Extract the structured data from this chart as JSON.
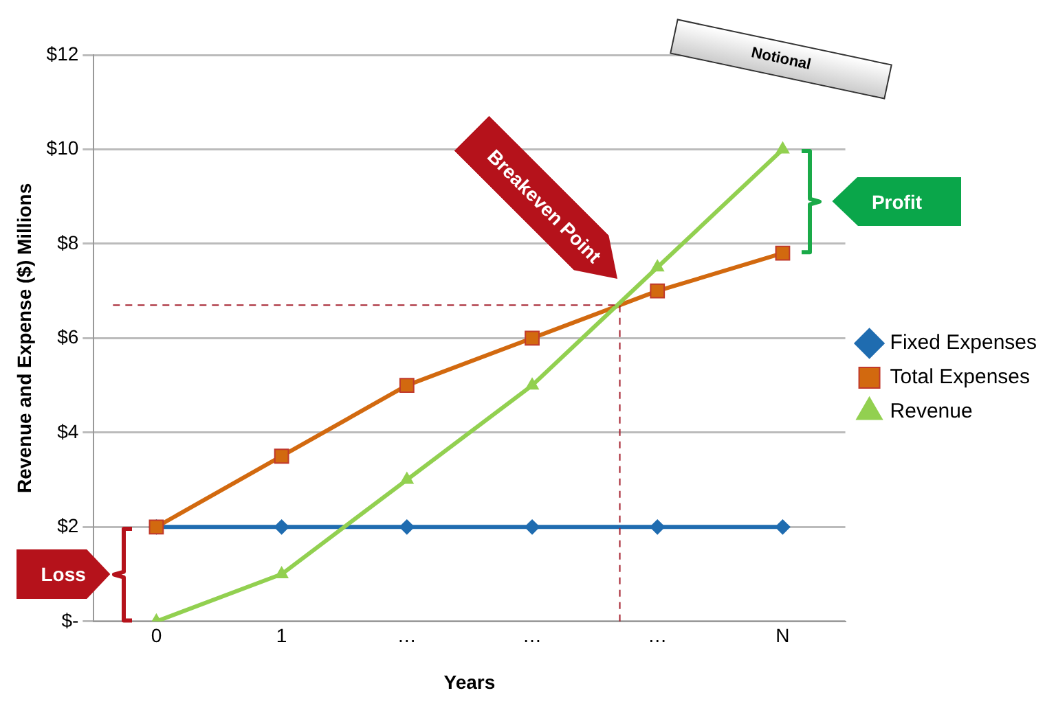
{
  "chart_data": {
    "type": "line",
    "xlabel": "Years",
    "ylabel": "Revenue and Expense ($) Millions",
    "x": [
      0,
      1,
      2,
      3,
      4,
      5
    ],
    "xlim": [
      -0.5,
      5.5
    ],
    "xticks": [
      0,
      1,
      {
        "value": 2,
        "label": "…"
      },
      {
        "value": 3,
        "label": "…"
      },
      {
        "value": 4,
        "label": "…"
      },
      {
        "value": 5,
        "label": "N"
      }
    ],
    "ylim": [
      0,
      12
    ],
    "yticks": [
      {
        "value": 0,
        "label": "$-"
      },
      {
        "value": 2,
        "label": "$2"
      },
      {
        "value": 4,
        "label": "$4"
      },
      {
        "value": 6,
        "label": "$6"
      },
      {
        "value": 8,
        "label": "$8"
      },
      {
        "value": 10,
        "label": "$10"
      },
      {
        "value": 12,
        "label": "$12"
      }
    ],
    "series": [
      {
        "name": "Fixed Expenses",
        "color": "#1f6cb0",
        "marker": "diamond",
        "values": [
          2,
          2,
          2,
          2,
          2,
          2
        ]
      },
      {
        "name": "Total Expenses",
        "color": "#d2690f",
        "marker": "square",
        "values": [
          2,
          3.5,
          5,
          6,
          7,
          7.8
        ]
      },
      {
        "name": "Revenue",
        "color": "#92d050",
        "marker": "triangle",
        "values": [
          0,
          1,
          3,
          5,
          7.5,
          10
        ]
      }
    ],
    "ref_lines": [
      {
        "axis": "y",
        "value": 6.7,
        "color": "#a5202e",
        "line_style": "dashed"
      },
      {
        "axis": "x",
        "value": 3.7,
        "color": "#a5202e",
        "line_style": "dashed"
      }
    ],
    "annotations": [
      {
        "text": "Breakeven Point",
        "x": 3.7,
        "y": 6.7
      },
      "Loss",
      "Profit",
      "Notional"
    ],
    "grid": "y",
    "legend": "right"
  }
}
